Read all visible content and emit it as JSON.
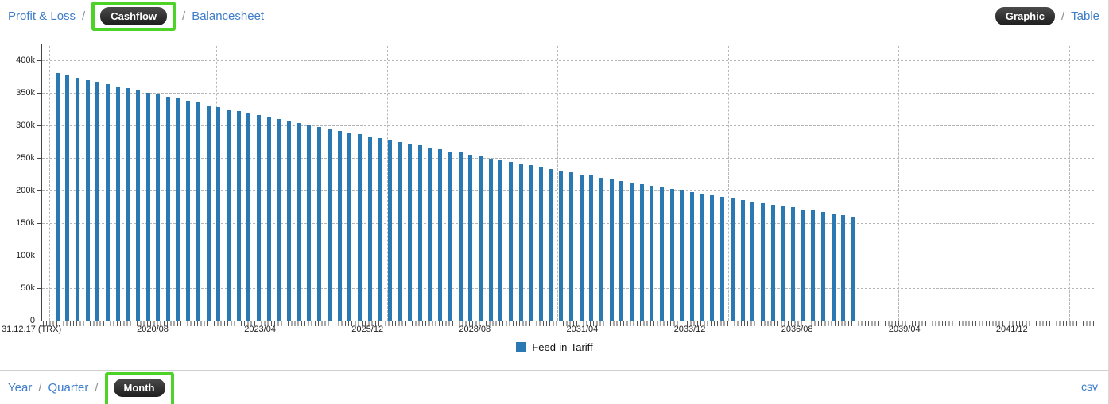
{
  "top_nav": {
    "separator": "/",
    "tabs": [
      {
        "label": "Profit & Loss",
        "selected": false
      },
      {
        "label": "Cashflow",
        "selected": true,
        "highlighted": true
      },
      {
        "label": "Balancesheet",
        "selected": false
      }
    ],
    "view_tabs": [
      {
        "label": "Graphic",
        "selected": true
      },
      {
        "label": "Table",
        "selected": false
      }
    ]
  },
  "chart_data": {
    "type": "bar",
    "title": "",
    "xlabel": "",
    "ylabel": "",
    "ylim": [
      0,
      410000
    ],
    "grid": true,
    "legend_position": "bottom-center",
    "legend_entries": [
      {
        "label": "Feed-in-Tariff",
        "color": "#2a79b2"
      }
    ],
    "y_ticks": [
      {
        "value": 0,
        "label": "0"
      },
      {
        "value": 50000,
        "label": "50k"
      },
      {
        "value": 100000,
        "label": "100k"
      },
      {
        "value": 150000,
        "label": "150k"
      },
      {
        "value": 200000,
        "label": "200k"
      },
      {
        "value": 250000,
        "label": "250k"
      },
      {
        "value": 300000,
        "label": "300k"
      },
      {
        "value": 350000,
        "label": "350k"
      },
      {
        "value": 400000,
        "label": "400k"
      }
    ],
    "x_axis_start_label": "31.12.17 (TRX)",
    "x_tick_labels": [
      "2020/08",
      "2023/04",
      "2025/12",
      "2028/08",
      "2031/04",
      "2033/12",
      "2036/08",
      "2039/04",
      "2041/12"
    ],
    "series": [
      {
        "name": "Feed-in-Tariff",
        "color": "#2a79b2",
        "values": [
          380000,
          377000,
          373000,
          370000,
          367000,
          363000,
          360000,
          357000,
          354000,
          350000,
          347000,
          344000,
          341000,
          338000,
          335000,
          331000,
          328000,
          325000,
          322000,
          319000,
          316000,
          313000,
          310000,
          307000,
          304000,
          301000,
          298000,
          295000,
          292000,
          289000,
          286000,
          283000,
          280000,
          277000,
          275000,
          272000,
          269000,
          266000,
          263000,
          260000,
          258000,
          255000,
          252000,
          249000,
          247000,
          244000,
          241000,
          239000,
          236000,
          233000,
          231000,
          228000,
          225000,
          223000,
          220000,
          218000,
          215000,
          212000,
          210000,
          207000,
          205000,
          202000,
          200000,
          197000,
          195000,
          193000,
          190000,
          188000,
          185000,
          183000,
          181000,
          178000,
          176000,
          174000,
          171000,
          169000,
          167000,
          164000,
          162000,
          160000
        ]
      }
    ]
  },
  "bottom_bar": {
    "separator": "/",
    "period_tabs": [
      {
        "label": "Year",
        "selected": false
      },
      {
        "label": "Quarter",
        "selected": false
      },
      {
        "label": "Month",
        "selected": true,
        "highlighted": true
      }
    ],
    "export_label": "csv"
  },
  "colors": {
    "link_blue": "#3e7dc9",
    "bar_blue": "#2a79b2",
    "annotation_green": "#4dd227",
    "pill_dark": "#1e1e1e",
    "grid_gray": "#b5b5b5"
  }
}
